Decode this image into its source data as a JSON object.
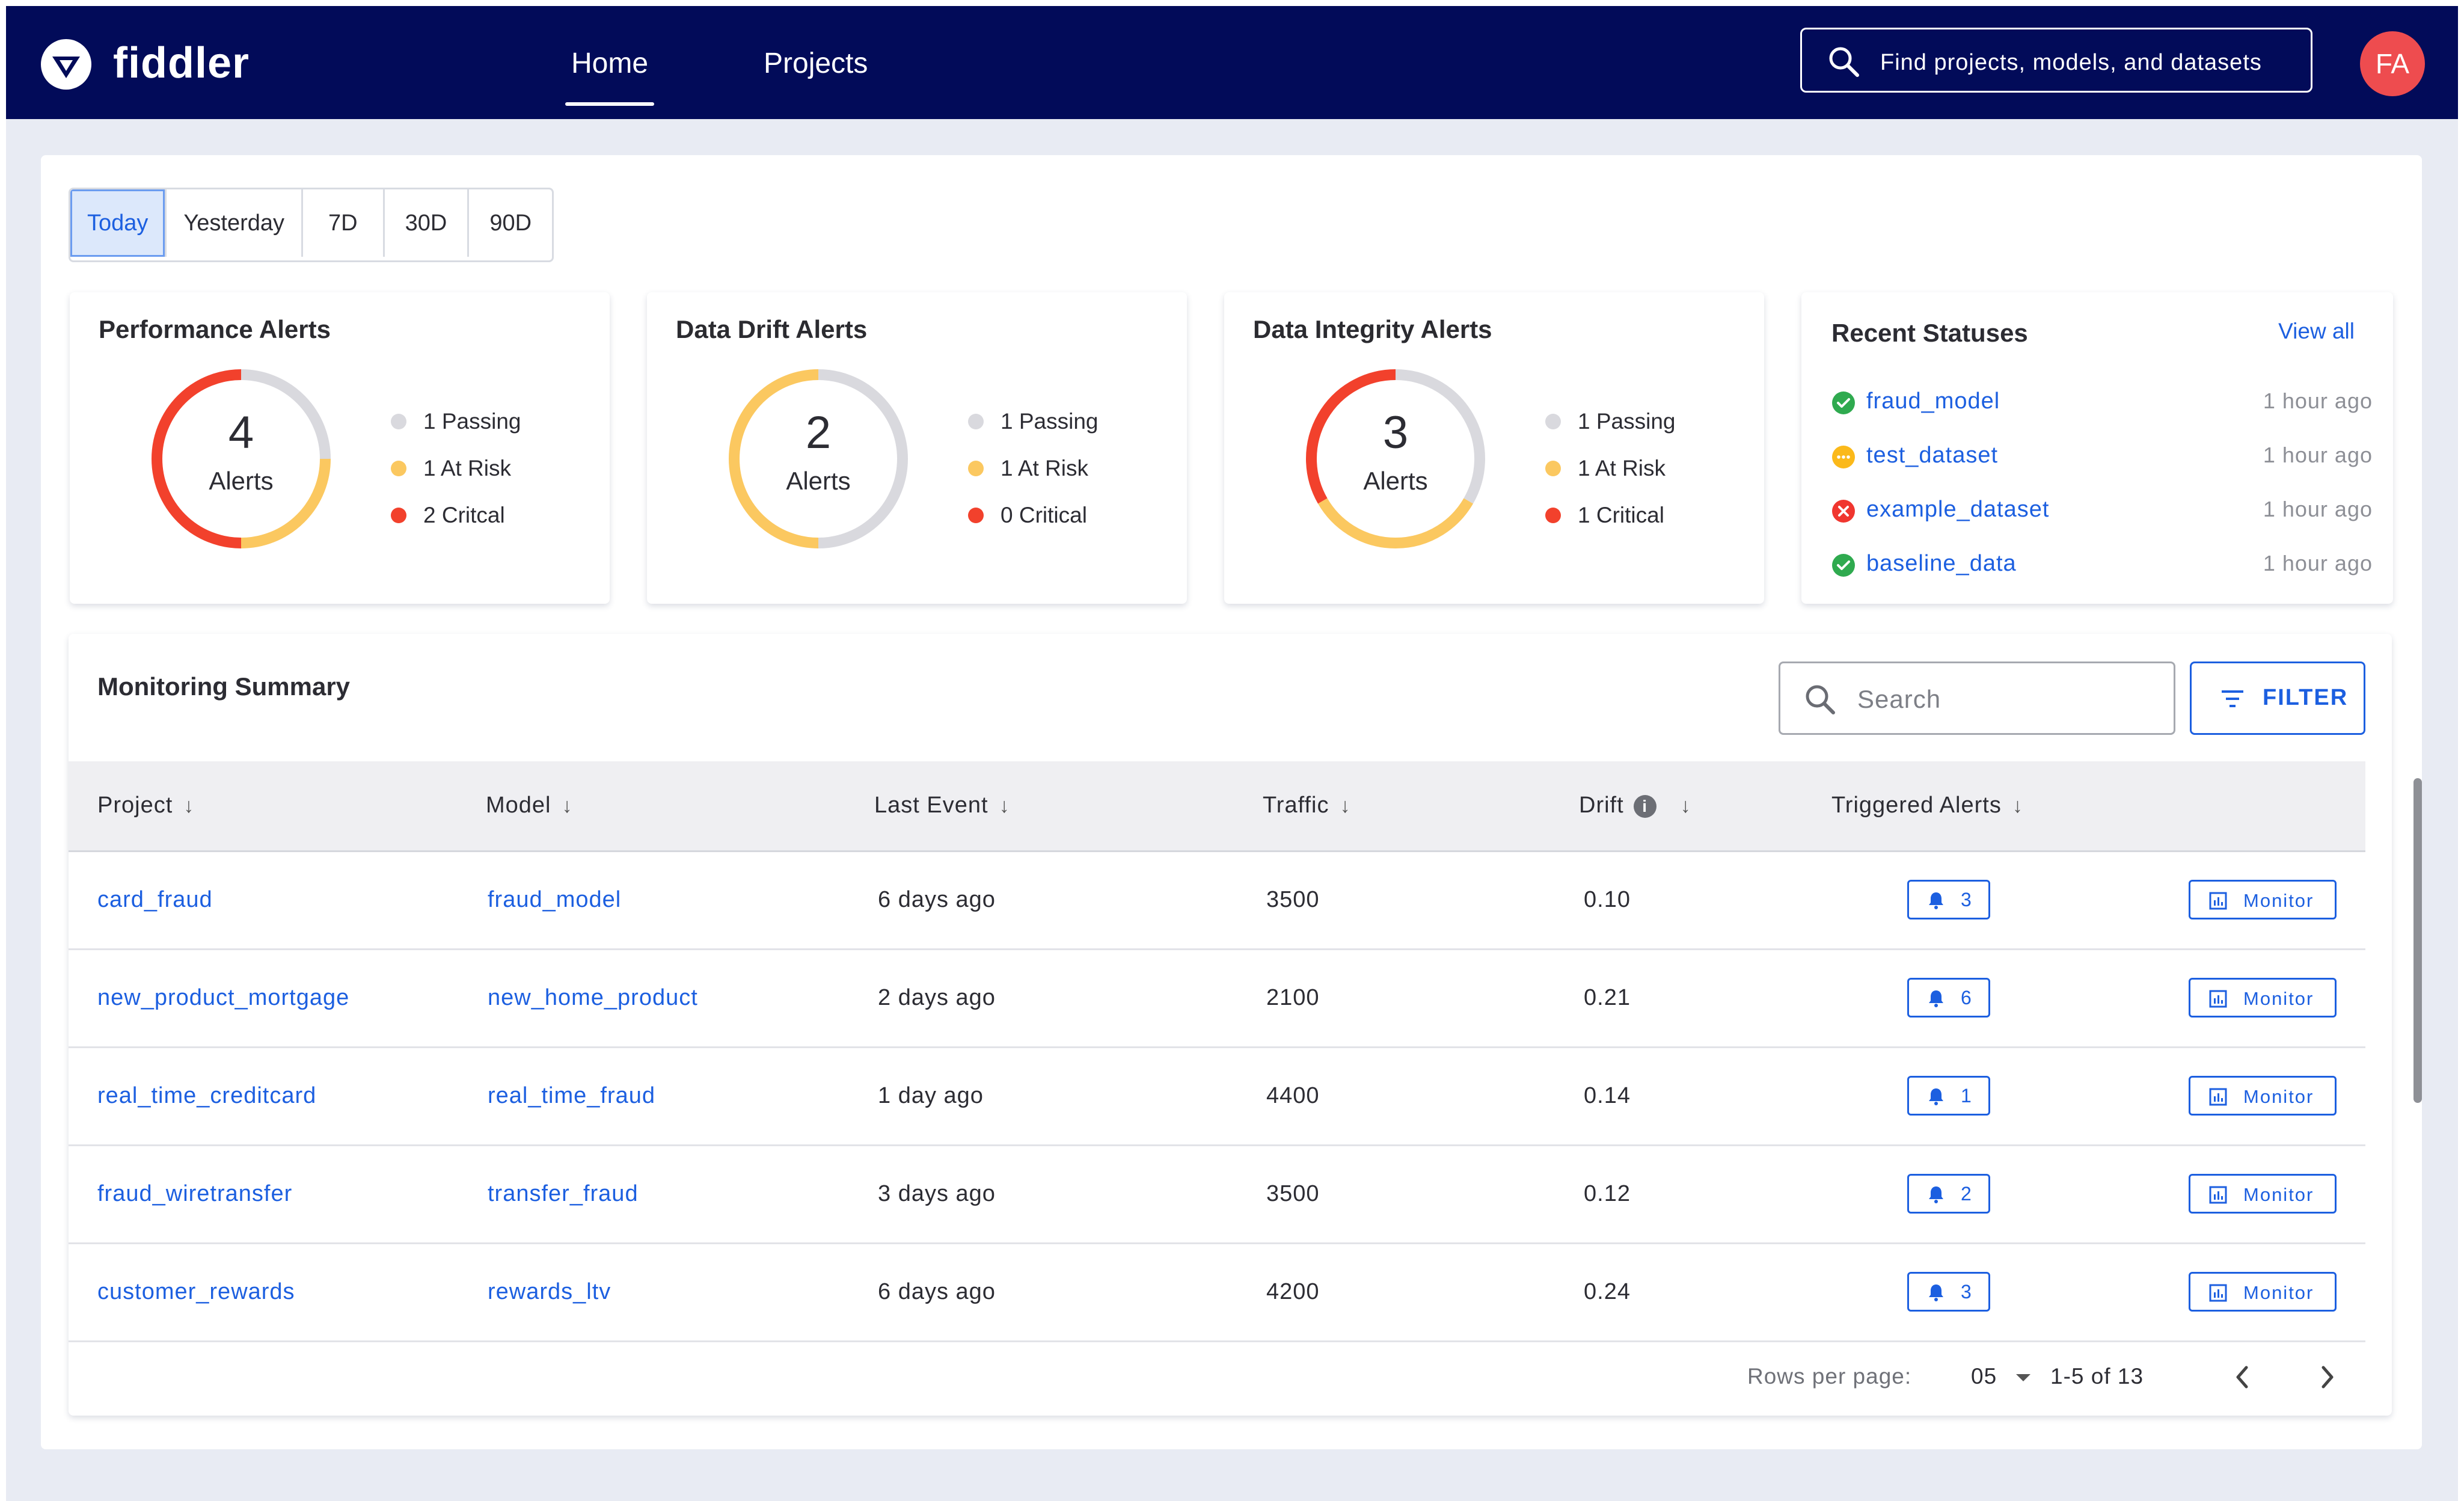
{
  "header": {
    "brand": "fiddler",
    "tabs": [
      {
        "label": "Home",
        "active": true
      },
      {
        "label": "Projects",
        "active": false
      }
    ],
    "search_placeholder": "Find projects, models, and datasets",
    "avatar_initials": "FA"
  },
  "date_range": {
    "options": [
      "Today",
      "Yesterday",
      "7D",
      "30D",
      "90D"
    ],
    "selected": "Today"
  },
  "alert_cards": [
    {
      "title": "Performance Alerts",
      "total": "4",
      "total_label": "Alerts",
      "legend": [
        "1 Passing",
        "1 At Risk",
        "2 Critcal"
      ],
      "counts": {
        "passing": 1,
        "at_risk": 1,
        "critical": 2
      }
    },
    {
      "title": "Data Drift Alerts",
      "total": "2",
      "total_label": "Alerts",
      "legend": [
        "1 Passing",
        "1 At Risk",
        "0 Critical"
      ],
      "counts": {
        "passing": 1,
        "at_risk": 1,
        "critical": 0
      }
    },
    {
      "title": "Data Integrity Alerts",
      "total": "3",
      "total_label": "Alerts",
      "legend": [
        "1 Passing",
        "1 At Risk",
        "1 Critical"
      ],
      "counts": {
        "passing": 1,
        "at_risk": 1,
        "critical": 1
      }
    }
  ],
  "colors": {
    "passing": "#d9d9de",
    "at_risk": "#fbc860",
    "critical": "#f2412c",
    "accent": "#1c5fe0",
    "nav": "#020b59"
  },
  "recent_statuses": {
    "title": "Recent Statuses",
    "view_all": "View all",
    "items": [
      {
        "name": "fraud_model",
        "time": "1 hour ago",
        "status": "success"
      },
      {
        "name": "test_dataset",
        "time": "1 hour ago",
        "status": "pending"
      },
      {
        "name": "example_dataset",
        "time": "1 hour ago",
        "status": "error"
      },
      {
        "name": "baseline_data",
        "time": "1 hour ago",
        "status": "success"
      }
    ]
  },
  "summary": {
    "title": "Monitoring Summary",
    "search_placeholder": "Search",
    "filter_label": "FILTER",
    "columns": [
      "Project",
      "Model",
      "Last Event",
      "Traffic",
      "Drift",
      "Triggered Alerts"
    ],
    "info_icon_glyph": "i",
    "monitor_label": "Monitor",
    "rows": [
      {
        "project": "card_fraud",
        "model": "fraud_model",
        "last_event": "6 days ago",
        "traffic": "3500",
        "drift": "0.10",
        "alerts": "3"
      },
      {
        "project": "new_product_mortgage",
        "model": "new_home_product",
        "last_event": "2 days ago",
        "traffic": "2100",
        "drift": "0.21",
        "alerts": "6"
      },
      {
        "project": "real_time_creditcard",
        "model": "real_time_fraud",
        "last_event": "1 day ago",
        "traffic": "4400",
        "drift": "0.14",
        "alerts": "1"
      },
      {
        "project": "fraud_wiretransfer",
        "model": "transfer_fraud",
        "last_event": "3 days ago",
        "traffic": "3500",
        "drift": "0.12",
        "alerts": "2"
      },
      {
        "project": "customer_rewards",
        "model": "rewards_ltv",
        "last_event": "6 days ago",
        "traffic": "4200",
        "drift": "0.24",
        "alerts": "3"
      }
    ],
    "pagination": {
      "rows_per_page_label": "Rows per page:",
      "rows_per_page": "05",
      "range": "1-5 of 13"
    }
  }
}
